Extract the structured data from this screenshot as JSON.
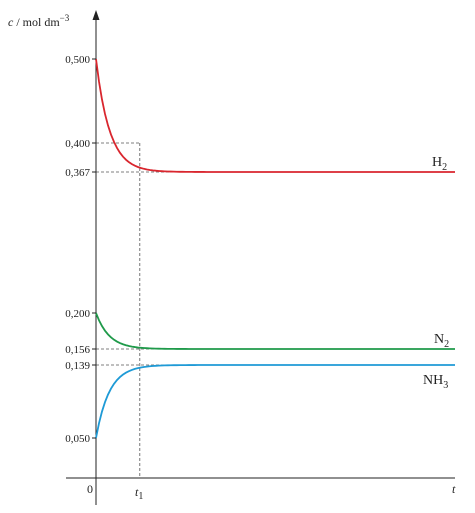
{
  "chart_data": {
    "type": "line",
    "ylabel": {
      "var": "c",
      "unit": " / mol dm",
      "exp": "−3"
    },
    "xlabel": "t",
    "origin_label": "0",
    "t1_label": {
      "base": "t",
      "sub": "1"
    },
    "y_ticks": [
      "0,500",
      "0,400",
      "0,367",
      "0,200",
      "0,156",
      "0,139",
      "0,050"
    ],
    "series": [
      {
        "name": "H₂",
        "label_base": "H",
        "label_sub": "2",
        "color": "#d9262e",
        "start": 0.5,
        "end": 0.367,
        "rate": 6.0,
        "value_at_t1": 0.4
      },
      {
        "name": "N₂",
        "label_base": "N",
        "label_sub": "2",
        "color": "#1f9a4a",
        "start": 0.2,
        "end": 0.156,
        "rate": 6.0,
        "value_at_t1": 0.167
      },
      {
        "name": "NH₃",
        "label_base": "NH",
        "label_sub": "3",
        "color": "#1e9ad6",
        "start": 0.05,
        "end": 0.139,
        "rate": 6.0,
        "value_at_t1": 0.117
      }
    ],
    "t1_fraction": 0.122,
    "guides": [
      0.4,
      0.367,
      0.156,
      0.139
    ]
  }
}
